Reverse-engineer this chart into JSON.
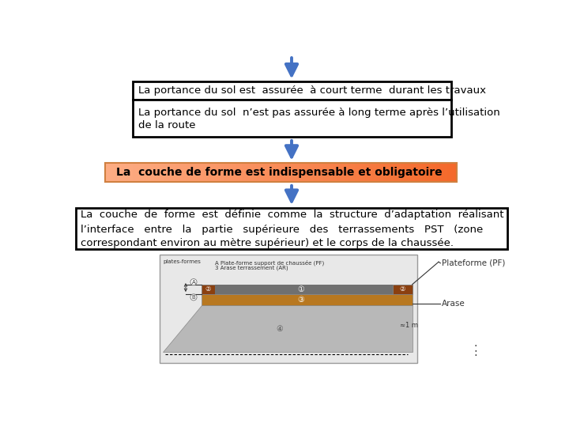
{
  "bg_color": "#ffffff",
  "arrow_color": "#4472C4",
  "box1_text": "La portance du sol est  assurée  à court terme  durant les travaux",
  "box2_line1": "La portance du sol  n’est pas assurée à long terme après l’utilisation",
  "box2_line2": "de la route",
  "box3_text": "La  couche de forme est indispensable et obligatoire",
  "box4_line1": "La  couche  de  forme  est  définie  comme  la  structure  d’adaptation  réalisant",
  "box4_line2": "l’interface   entre   la   partie   supérieure   des   terrassements   PST   (zone",
  "box4_line3": "correspondant environ au mètre supérieur) et le corps de la chaussée.",
  "text_color": "#000000",
  "fontsize_main": 9.5,
  "fontsize_bold": 10,
  "label_plateforme": "Plateforme (PF)",
  "label_arase": "Arase",
  "diag_text1": "plates-formes",
  "diag_text2": "A Plate-forme support de chaussée (PF)",
  "diag_text3": "3 Arase terrassement (AR)"
}
